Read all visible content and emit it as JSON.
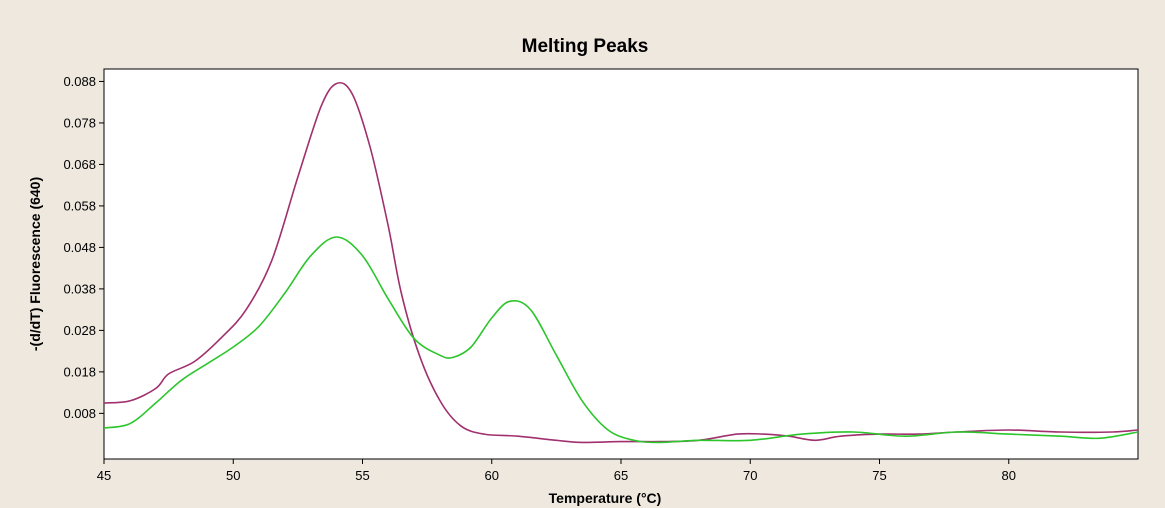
{
  "colors": {
    "background": "#eee8df",
    "plot_background": "#ffffff",
    "axis": "#000000"
  },
  "chart_data": {
    "type": "line",
    "title": "Melting Peaks",
    "xlabel": "Temperature (°C)",
    "ylabel": "-(d/dT) Fluorescence (640)",
    "xlim": [
      45,
      85
    ],
    "ylim": [
      -0.003,
      0.091
    ],
    "x_ticks": [
      45,
      50,
      55,
      60,
      65,
      70,
      75,
      80
    ],
    "x_tick_labels": [
      "45",
      "50",
      "55",
      "60",
      "65",
      "70",
      "75",
      "80"
    ],
    "y_ticks": [
      0.008,
      0.018,
      0.028,
      0.038,
      0.048,
      0.058,
      0.068,
      0.078,
      0.088
    ],
    "y_tick_labels": [
      "0.008",
      "0.018",
      "0.028",
      "0.038",
      "0.048",
      "0.058",
      "0.068",
      "0.078",
      "0.088"
    ],
    "grid": false,
    "legend": "none",
    "series": [
      {
        "color": "#a0306e",
        "points": [
          [
            45,
            0.0105
          ],
          [
            46,
            0.011
          ],
          [
            47,
            0.014
          ],
          [
            47.5,
            0.0175
          ],
          [
            48.5,
            0.0205
          ],
          [
            49.5,
            0.026
          ],
          [
            50.5,
            0.033
          ],
          [
            51.5,
            0.045
          ],
          [
            52.5,
            0.065
          ],
          [
            53.4,
            0.082
          ],
          [
            54,
            0.0875
          ],
          [
            54.6,
            0.085
          ],
          [
            55.3,
            0.072
          ],
          [
            56,
            0.053
          ],
          [
            56.5,
            0.037
          ],
          [
            57.2,
            0.022
          ],
          [
            58,
            0.011
          ],
          [
            58.8,
            0.005
          ],
          [
            59.7,
            0.003
          ],
          [
            61,
            0.0025
          ],
          [
            62.5,
            0.0015
          ],
          [
            63.5,
            0.001
          ],
          [
            65,
            0.0012
          ],
          [
            66.5,
            0.0012
          ],
          [
            68,
            0.0015
          ],
          [
            69.5,
            0.003
          ],
          [
            70.5,
            0.003
          ],
          [
            71.5,
            0.0025
          ],
          [
            72.5,
            0.0015
          ],
          [
            73.5,
            0.0025
          ],
          [
            75,
            0.003
          ],
          [
            76.5,
            0.003
          ],
          [
            78,
            0.0035
          ],
          [
            80,
            0.004
          ],
          [
            82,
            0.0035
          ],
          [
            84,
            0.0035
          ],
          [
            85,
            0.004
          ]
        ]
      },
      {
        "color": "#2cc52c",
        "points": [
          [
            45,
            0.0045
          ],
          [
            46,
            0.0055
          ],
          [
            47,
            0.0105
          ],
          [
            48,
            0.016
          ],
          [
            49,
            0.02
          ],
          [
            50,
            0.024
          ],
          [
            51,
            0.029
          ],
          [
            52,
            0.037
          ],
          [
            53,
            0.046
          ],
          [
            54,
            0.0505
          ],
          [
            55,
            0.046
          ],
          [
            56,
            0.0355
          ],
          [
            57,
            0.026
          ],
          [
            58,
            0.022
          ],
          [
            58.5,
            0.0215
          ],
          [
            59.2,
            0.024
          ],
          [
            60,
            0.031
          ],
          [
            60.7,
            0.035
          ],
          [
            61.5,
            0.033
          ],
          [
            62.5,
            0.022
          ],
          [
            63.5,
            0.011
          ],
          [
            64.5,
            0.004
          ],
          [
            65.5,
            0.0015
          ],
          [
            66.5,
            0.001
          ],
          [
            68,
            0.0015
          ],
          [
            70,
            0.0015
          ],
          [
            72,
            0.003
          ],
          [
            74,
            0.0035
          ],
          [
            76,
            0.0025
          ],
          [
            78,
            0.0035
          ],
          [
            80,
            0.003
          ],
          [
            82,
            0.0025
          ],
          [
            83.5,
            0.002
          ],
          [
            85,
            0.0035
          ]
        ]
      }
    ]
  }
}
